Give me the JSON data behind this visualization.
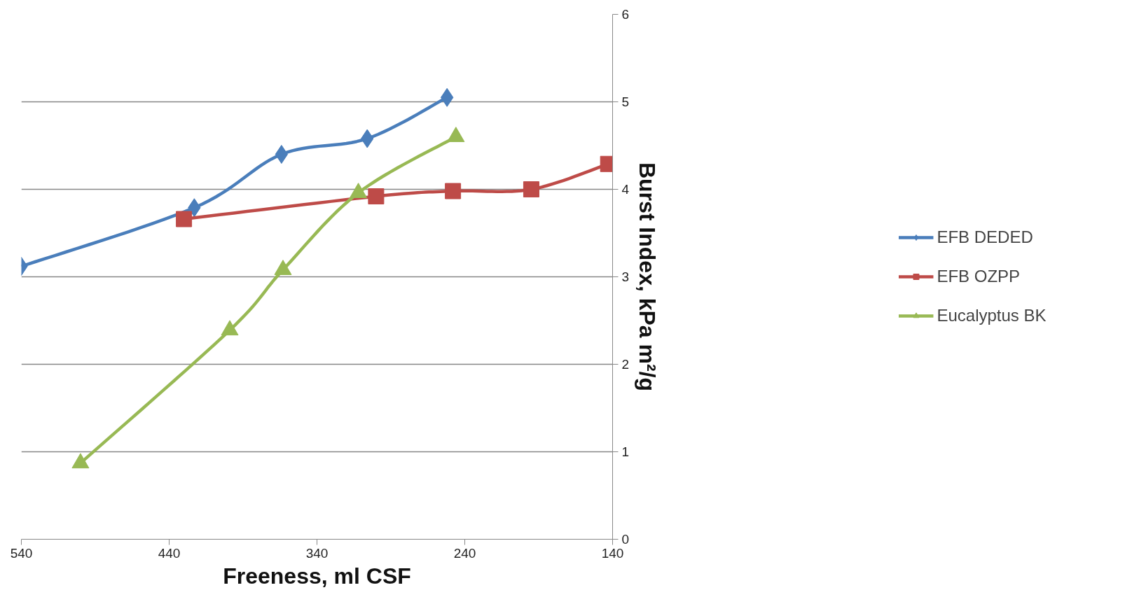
{
  "chart_data": {
    "type": "line",
    "xlabel": "Freeness, ml CSF",
    "ylabel": "Burst Index, kPa m²/g",
    "xlim": [
      540,
      140
    ],
    "xticks": [
      540,
      440,
      340,
      240,
      140
    ],
    "ylim": [
      0,
      6
    ],
    "yticks": [
      0,
      1,
      2,
      3,
      4,
      5,
      6
    ],
    "grid": "y",
    "legend": "right",
    "line_style": "solid",
    "series": [
      {
        "name": "EFB DEDED",
        "color": "#4a7ebb",
        "marker": "diamond",
        "x": [
          540,
          423,
          364,
          306,
          252
        ],
        "values": [
          3.12,
          3.79,
          4.4,
          4.58,
          5.05
        ]
      },
      {
        "name": "EFB OZPP",
        "color": "#be4b48",
        "marker": "square",
        "x": [
          430,
          300,
          248,
          195,
          143
        ],
        "values": [
          3.66,
          3.92,
          3.98,
          4.0,
          4.29
        ]
      },
      {
        "name": "Eucalyptus BK",
        "color": "#98b954",
        "marker": "triangle",
        "x": [
          500,
          399,
          363,
          312,
          246
        ],
        "values": [
          0.87,
          2.39,
          3.08,
          3.96,
          4.6
        ]
      }
    ]
  }
}
